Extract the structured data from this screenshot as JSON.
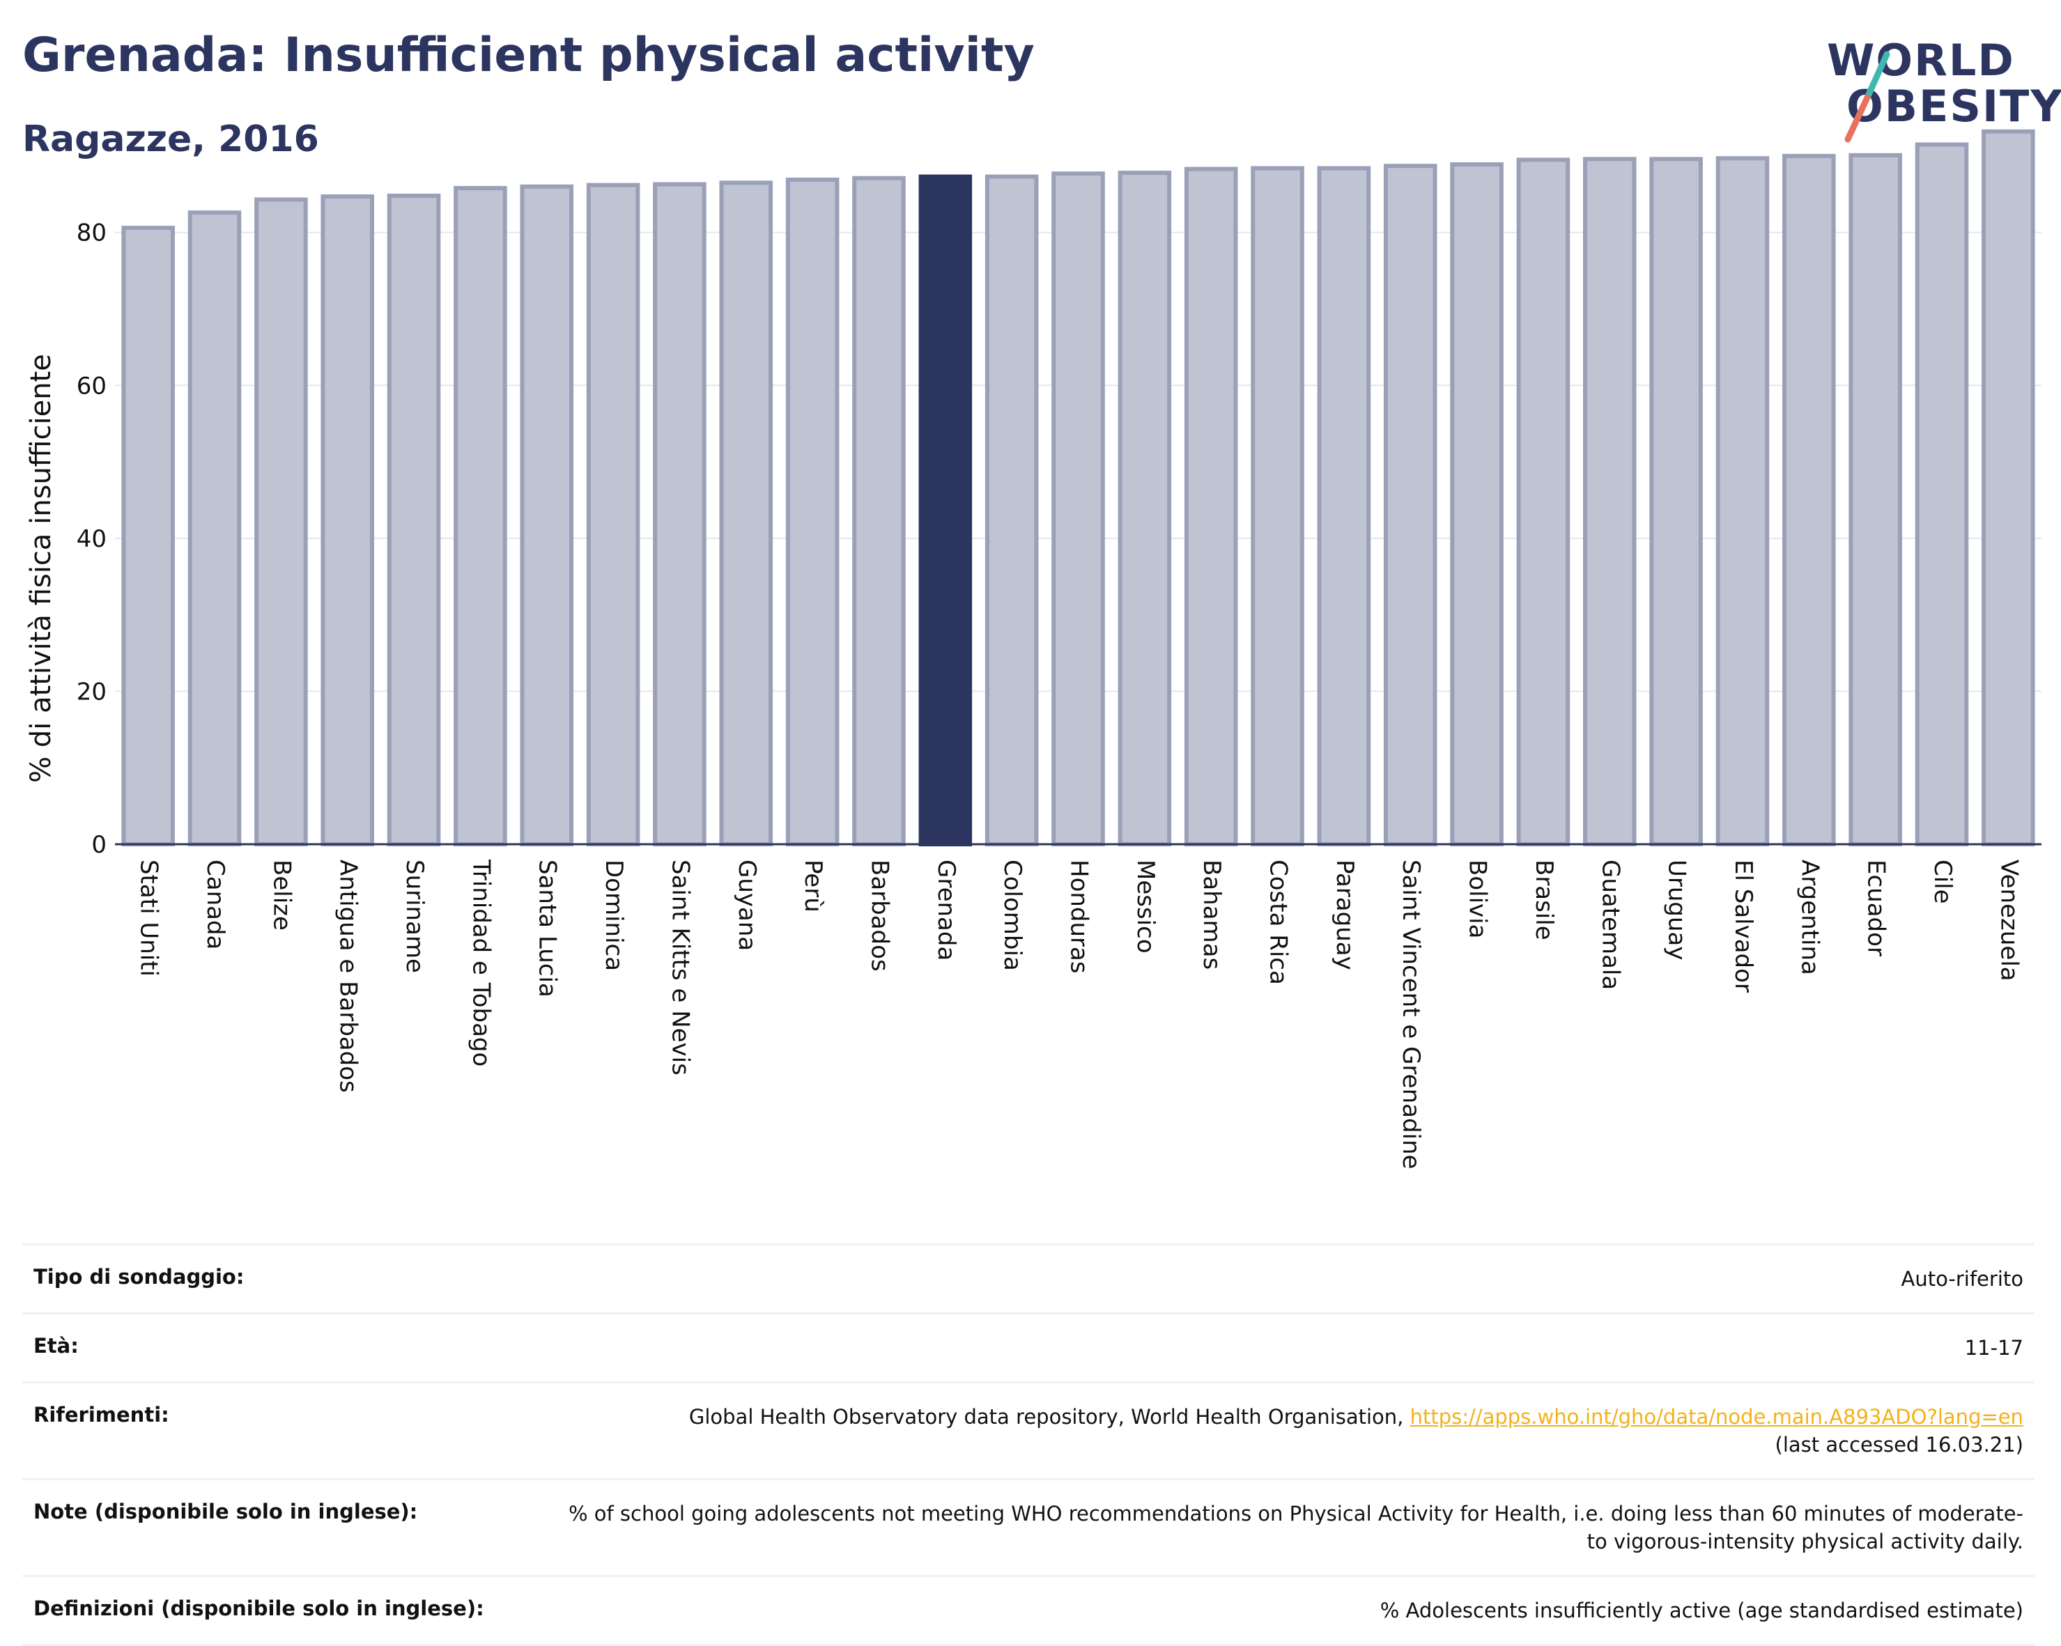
{
  "header": {
    "title": "Grenada: Insufficient physical activity",
    "subtitle": "Ragazze, 2016"
  },
  "logo": {
    "line1": "WORLD",
    "line2": "OBESITY"
  },
  "colors": {
    "highlight": "#2b3560",
    "bar": "#c0c3d1",
    "bar_stroke": "#9aa0b8"
  },
  "chart_data": {
    "type": "bar",
    "ylabel": "% di attività fisica insufficiente",
    "xlabel": "",
    "ylim": [
      0,
      94
    ],
    "yticks": [
      0,
      20,
      40,
      60,
      80
    ],
    "grid": true,
    "highlight": "Grenada",
    "categories": [
      "Stati Uniti",
      "Canada",
      "Belize",
      "Antigua e Barbados",
      "Suriname",
      "Trinidad e Tobago",
      "Santa Lucia",
      "Dominica",
      "Saint Kitts e Nevis",
      "Guyana",
      "Perù",
      "Barbados",
      "Grenada",
      "Colombia",
      "Honduras",
      "Messico",
      "Bahamas",
      "Costa Rica",
      "Paraguay",
      "Saint Vincent e Grenadine",
      "Bolivia",
      "Brasile",
      "Guatemala",
      "Uruguay",
      "El Salvador",
      "Argentina",
      "Ecuador",
      "Cile",
      "Venezuela"
    ],
    "values": [
      80.6,
      82.6,
      84.3,
      84.7,
      84.8,
      85.8,
      86.0,
      86.2,
      86.3,
      86.5,
      86.9,
      87.1,
      87.3,
      87.3,
      87.7,
      87.8,
      88.3,
      88.4,
      88.4,
      88.7,
      88.9,
      89.5,
      89.6,
      89.6,
      89.7,
      90.0,
      90.1,
      91.5,
      93.2
    ]
  },
  "info": {
    "rows": [
      {
        "label": "Tipo di sondaggio:",
        "value": "Auto-riferito"
      },
      {
        "label": "Età:",
        "value": "11-17"
      },
      {
        "label": "Riferimenti:",
        "value": "Global Health Observatory data repository, World Health Organisation, ",
        "link": "https://apps.who.int/gho/data/node.main.A893ADO?lang=en",
        "value2": "(last accessed 16.03.21)"
      },
      {
        "label": "Note (disponibile solo in inglese):",
        "value": "% of school going adolescents not meeting WHO recommendations on Physical Activity for Health, i.e. doing less than 60 minutes of moderate- to vigorous-intensity physical activity daily."
      },
      {
        "label": "Definizioni (disponibile solo in inglese):",
        "value": "% Adolescents insufficiently active (age standardised estimate)"
      }
    ]
  }
}
